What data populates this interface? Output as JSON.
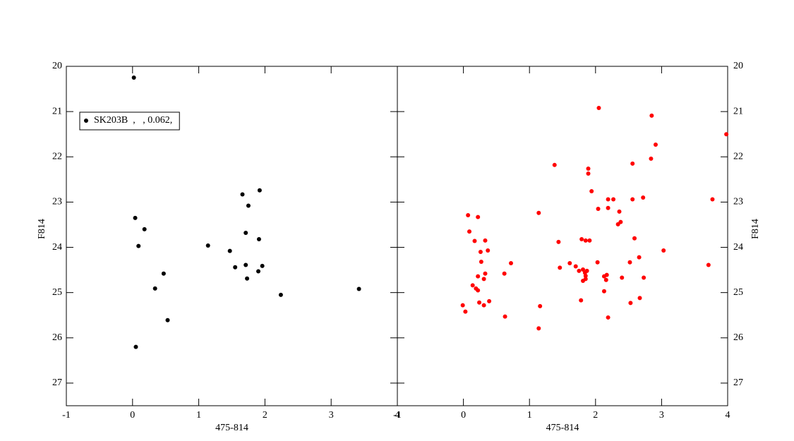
{
  "chart_data": [
    {
      "type": "scatter",
      "x_label": "475-814",
      "y_label": "F814",
      "y_axis_side": "left",
      "xlim": [
        -1,
        4
      ],
      "ylim": [
        20,
        27.5
      ],
      "y_inverted": true,
      "xticks": [
        -1,
        0,
        1,
        2,
        3,
        4
      ],
      "yticks": [
        20,
        21,
        22,
        23,
        24,
        25,
        26,
        27
      ],
      "legend": "upper-left",
      "series": [
        {
          "name": "SK203B  ,   , 0.062,",
          "color": "#000000",
          "x": [
            0.02,
            0.04,
            0.18,
            0.09,
            0.47,
            0.34,
            0.53,
            0.05,
            1.14,
            1.47,
            1.55,
            1.66,
            1.75,
            1.71,
            1.71,
            1.73,
            1.92,
            1.91,
            1.96,
            1.9,
            2.24,
            3.42
          ],
          "values": [
            20.25,
            23.35,
            23.6,
            23.97,
            24.58,
            24.91,
            25.61,
            26.2,
            23.96,
            24.08,
            24.44,
            22.83,
            23.08,
            23.68,
            24.39,
            24.69,
            22.74,
            23.82,
            24.41,
            24.53,
            25.05,
            24.92
          ]
        }
      ]
    },
    {
      "type": "scatter",
      "x_label": "475-814",
      "y_label": "F814",
      "y_axis_side": "right",
      "xlim": [
        -1,
        4
      ],
      "ylim": [
        20,
        27.5
      ],
      "y_inverted": true,
      "xticks": [
        -1,
        0,
        1,
        2,
        3,
        4
      ],
      "yticks": [
        20,
        21,
        22,
        23,
        24,
        25,
        26,
        27
      ],
      "series": [
        {
          "color": "#ff0000",
          "x": [
            2.05,
            2.85,
            2.91,
            3.98,
            1.38,
            2.56,
            2.84,
            1.89,
            1.89,
            1.94,
            2.19,
            2.27,
            2.56,
            2.72,
            3.77,
            1.14,
            2.04,
            2.19,
            2.36,
            2.38,
            2.34,
            0.07,
            0.22,
            0.09,
            0.17,
            0.33,
            0.26,
            0.37,
            1.44,
            1.79,
            1.85,
            1.91,
            2.59,
            3.03,
            0.72,
            0.27,
            1.61,
            1.46,
            1.7,
            1.75,
            2.03,
            2.66,
            2.52,
            3.71,
            0.62,
            0.33,
            0.22,
            1.81,
            1.84,
            1.87,
            1.85,
            1.85,
            1.81,
            2.13,
            2.17,
            2.16,
            2.4,
            2.73,
            0.31,
            0.14,
            0.19,
            0.22,
            2.13,
            0.39,
            0.24,
            0.31,
            1.16,
            1.78,
            2.67,
            2.53,
            -0.01,
            0.03,
            0.63,
            2.19,
            1.14
          ],
          "values": [
            20.92,
            21.09,
            21.73,
            21.5,
            22.18,
            22.15,
            22.04,
            22.26,
            22.37,
            22.76,
            22.94,
            22.94,
            22.94,
            22.9,
            22.94,
            23.24,
            23.15,
            23.13,
            23.21,
            23.44,
            23.49,
            23.29,
            23.33,
            23.65,
            23.86,
            23.85,
            24.1,
            24.07,
            23.88,
            23.82,
            23.85,
            23.85,
            23.8,
            24.07,
            24.35,
            24.32,
            24.35,
            24.45,
            24.42,
            24.52,
            24.33,
            24.22,
            24.33,
            24.39,
            24.58,
            24.58,
            24.64,
            24.49,
            24.56,
            24.52,
            24.63,
            24.7,
            24.74,
            24.64,
            24.61,
            24.72,
            24.67,
            24.67,
            24.7,
            24.84,
            24.91,
            24.95,
            24.97,
            25.19,
            25.22,
            25.28,
            25.3,
            25.17,
            25.12,
            25.23,
            25.28,
            25.42,
            25.53,
            25.55,
            25.79
          ]
        }
      ]
    }
  ]
}
